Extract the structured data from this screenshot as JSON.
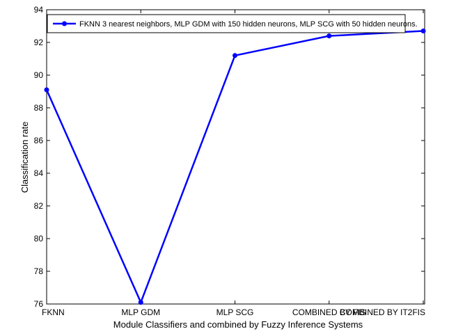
{
  "chart_data": {
    "type": "line",
    "categories": [
      "FKNN",
      "MLP GDM",
      "MLP SCG",
      "COMBINED BY FIS",
      "COMBINED BY IT2FIS"
    ],
    "series": [
      {
        "name": "FKNN 3 nearest neighbors,  MLP GDM with 150 hidden neurons, MLP SCG with 50 hidden neurons.",
        "values": [
          89.1,
          76.1,
          91.2,
          92.4,
          92.7
        ],
        "color": "#0000ff",
        "marker": "circle"
      }
    ],
    "title": "",
    "xlabel": "Module Classifiers and combined by Fuzzy Inference Systems",
    "ylabel": "Classification rate",
    "ylim": [
      76,
      94
    ],
    "yticks": [
      76,
      78,
      80,
      82,
      84,
      86,
      88,
      90,
      92,
      94
    ],
    "grid": false,
    "legend_position": "top"
  }
}
